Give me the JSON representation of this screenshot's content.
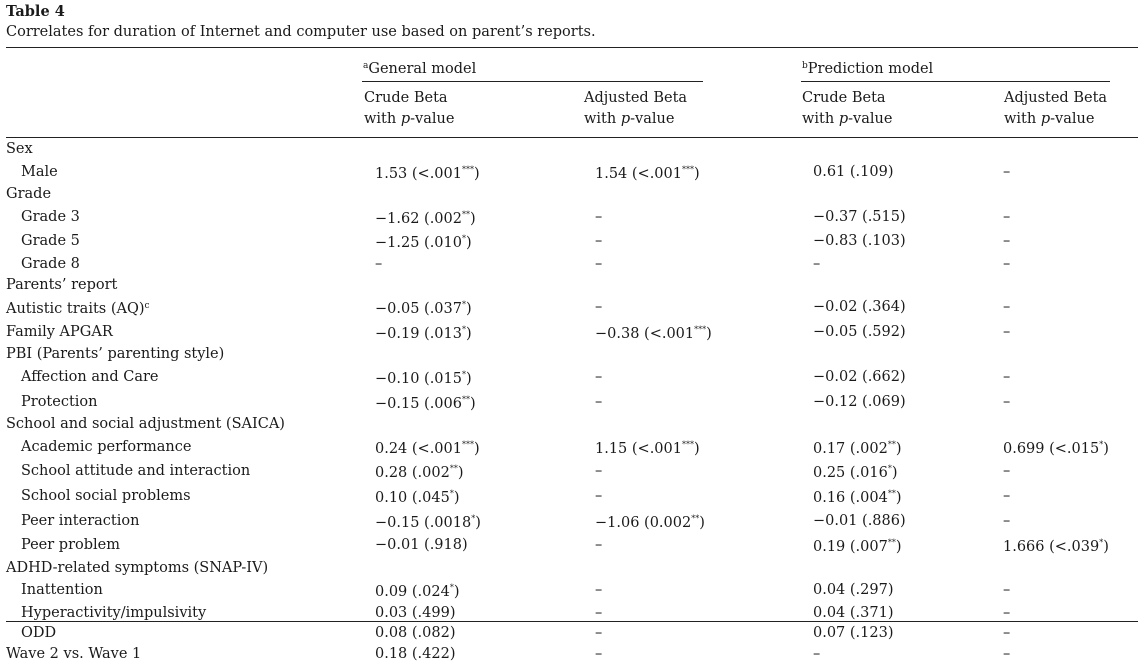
{
  "caption": {
    "title": "Table 4",
    "text": "Correlates for duration of Internet and computer use based on parent’s reports."
  },
  "header": {
    "general_model": {
      "marker": "a",
      "label": "General model"
    },
    "prediction_model": {
      "marker": "b",
      "label": "Prediction model"
    },
    "crude_beta": "Crude Beta",
    "adjusted_beta": "Adjusted Beta",
    "with": "with",
    "p_value": "p",
    "value_suffix": "-value"
  },
  "rows": [
    {
      "label": "Sex",
      "indent": false,
      "cells": [
        "",
        "",
        "",
        ""
      ]
    },
    {
      "label": "Male",
      "indent": true,
      "cells": [
        {
          "text": "1.53 (<.001",
          "sig": "***",
          "close": ")"
        },
        {
          "text": "1.54 (<.001",
          "sig": "***",
          "close": ")"
        },
        {
          "text": "0.61 (.109)",
          "sig": "",
          "close": ""
        },
        {
          "text": "–",
          "sig": "",
          "close": ""
        }
      ]
    },
    {
      "label": "Grade",
      "indent": false,
      "cells": [
        "",
        "",
        "",
        ""
      ]
    },
    {
      "label": "Grade 3",
      "indent": true,
      "cells": [
        {
          "text": "−1.62 (.002",
          "sig": "**",
          "close": ")"
        },
        {
          "text": "–",
          "sig": "",
          "close": ""
        },
        {
          "text": "−0.37 (.515)",
          "sig": "",
          "close": ""
        },
        {
          "text": "–",
          "sig": "",
          "close": ""
        }
      ]
    },
    {
      "label": "Grade 5",
      "indent": true,
      "cells": [
        {
          "text": "−1.25 (.010",
          "sig": "*",
          "close": ")"
        },
        {
          "text": "–",
          "sig": "",
          "close": ""
        },
        {
          "text": "−0.83 (.103)",
          "sig": "",
          "close": ""
        },
        {
          "text": "–",
          "sig": "",
          "close": ""
        }
      ]
    },
    {
      "label": "Grade 8",
      "indent": true,
      "cells": [
        {
          "text": "–",
          "sig": "",
          "close": ""
        },
        {
          "text": "–",
          "sig": "",
          "close": ""
        },
        {
          "text": "–",
          "sig": "",
          "close": ""
        },
        {
          "text": "–",
          "sig": "",
          "close": ""
        }
      ]
    },
    {
      "label": "Parents’ report",
      "indent": false,
      "cells": [
        "",
        "",
        "",
        ""
      ]
    },
    {
      "label": "Autistic traits (AQ)",
      "label_sup": "c",
      "indent": false,
      "cells": [
        {
          "text": "−0.05 (.037",
          "sig": "*",
          "close": ")"
        },
        {
          "text": "–",
          "sig": "",
          "close": ""
        },
        {
          "text": "−0.02 (.364)",
          "sig": "",
          "close": ""
        },
        {
          "text": "–",
          "sig": "",
          "close": ""
        }
      ]
    },
    {
      "label": "Family APGAR",
      "indent": false,
      "cells": [
        {
          "text": "−0.19 (.013",
          "sig": "*",
          "close": ")"
        },
        {
          "text": "−0.38 (<.001",
          "sig": "***",
          "close": ")"
        },
        {
          "text": "−0.05 (.592)",
          "sig": "",
          "close": ""
        },
        {
          "text": "–",
          "sig": "",
          "close": ""
        }
      ]
    },
    {
      "label": "PBI (Parents’ parenting style)",
      "indent": false,
      "cells": [
        "",
        "",
        "",
        ""
      ]
    },
    {
      "label": "Affection and Care",
      "indent": true,
      "cells": [
        {
          "text": "−0.10 (.015",
          "sig": "*",
          "close": ")"
        },
        {
          "text": "–",
          "sig": "",
          "close": ""
        },
        {
          "text": "−0.02 (.662)",
          "sig": "",
          "close": ""
        },
        {
          "text": "–",
          "sig": "",
          "close": ""
        }
      ]
    },
    {
      "label": "Protection",
      "indent": true,
      "cells": [
        {
          "text": "−0.15 (.006",
          "sig": "**",
          "close": ")"
        },
        {
          "text": "–",
          "sig": "",
          "close": ""
        },
        {
          "text": "−0.12 (.069)",
          "sig": "",
          "close": ""
        },
        {
          "text": "–",
          "sig": "",
          "close": ""
        }
      ]
    },
    {
      "label": "School and social adjustment (SAICA)",
      "indent": false,
      "cells": [
        "",
        "",
        "",
        ""
      ]
    },
    {
      "label": "Academic performance",
      "indent": true,
      "cells": [
        {
          "text": "0.24 (<.001",
          "sig": "***",
          "close": ")"
        },
        {
          "text": "1.15 (<.001",
          "sig": "***",
          "close": ")"
        },
        {
          "text": "0.17 (.002",
          "sig": "**",
          "close": ")"
        },
        {
          "text": "0.699 (<.015",
          "sig": "*",
          "close": ")"
        }
      ]
    },
    {
      "label": "School attitude and interaction",
      "indent": true,
      "cells": [
        {
          "text": "0.28 (.002",
          "sig": "**",
          "close": ")"
        },
        {
          "text": "–",
          "sig": "",
          "close": ""
        },
        {
          "text": "0.25 (.016",
          "sig": "*",
          "close": ")"
        },
        {
          "text": "–",
          "sig": "",
          "close": ""
        }
      ]
    },
    {
      "label": "School social problems",
      "indent": true,
      "cells": [
        {
          "text": "0.10 (.045",
          "sig": "*",
          "close": ")"
        },
        {
          "text": "–",
          "sig": "",
          "close": ""
        },
        {
          "text": "0.16 (.004",
          "sig": "**",
          "close": ")"
        },
        {
          "text": "–",
          "sig": "",
          "close": ""
        }
      ]
    },
    {
      "label": "Peer interaction",
      "indent": true,
      "cells": [
        {
          "text": "−0.15 (.0018",
          "sig": "*",
          "close": ")"
        },
        {
          "text": "−1.06 (0.002",
          "sig": "**",
          "close": ")"
        },
        {
          "text": "−0.01 (.886)",
          "sig": "",
          "close": ""
        },
        {
          "text": "–",
          "sig": "",
          "close": ""
        }
      ]
    },
    {
      "label": "Peer problem",
      "indent": true,
      "cells": [
        {
          "text": "−0.01 (.918)",
          "sig": "",
          "close": ""
        },
        {
          "text": "–",
          "sig": "",
          "close": ""
        },
        {
          "text": "0.19 (.007",
          "sig": "**",
          "close": ")"
        },
        {
          "text": "1.666 (<.039",
          "sig": "*",
          "close": ")"
        }
      ]
    },
    {
      "label": "ADHD-related symptoms (SNAP-IV)",
      "indent": false,
      "cells": [
        "",
        "",
        "",
        ""
      ]
    },
    {
      "label": "Inattention",
      "indent": true,
      "cells": [
        {
          "text": "0.09 (.024",
          "sig": "*",
          "close": ")"
        },
        {
          "text": "–",
          "sig": "",
          "close": ""
        },
        {
          "text": "0.04 (.297)",
          "sig": "",
          "close": ""
        },
        {
          "text": "–",
          "sig": "",
          "close": ""
        }
      ]
    },
    {
      "label": "Hyperactivity/impulsivity",
      "indent": true,
      "cells": [
        {
          "text": "0.03 (.499)",
          "sig": "",
          "close": ""
        },
        {
          "text": "–",
          "sig": "",
          "close": ""
        },
        {
          "text": "0.04 (.371)",
          "sig": "",
          "close": ""
        },
        {
          "text": "–",
          "sig": "",
          "close": ""
        }
      ]
    },
    {
      "label": "ODD",
      "indent": true,
      "cells": [
        {
          "text": "0.08 (.082)",
          "sig": "",
          "close": ""
        },
        {
          "text": "–",
          "sig": "",
          "close": ""
        },
        {
          "text": "0.07 (.123)",
          "sig": "",
          "close": ""
        },
        {
          "text": "–",
          "sig": "",
          "close": ""
        }
      ]
    },
    {
      "label": "Wave 2 vs. Wave 1",
      "indent": false,
      "cells": [
        {
          "text": "0.18 (.422)",
          "sig": "",
          "close": ""
        },
        {
          "text": "–",
          "sig": "",
          "close": ""
        },
        {
          "text": "–",
          "sig": "",
          "close": ""
        },
        {
          "text": "–",
          "sig": "",
          "close": ""
        }
      ]
    }
  ]
}
